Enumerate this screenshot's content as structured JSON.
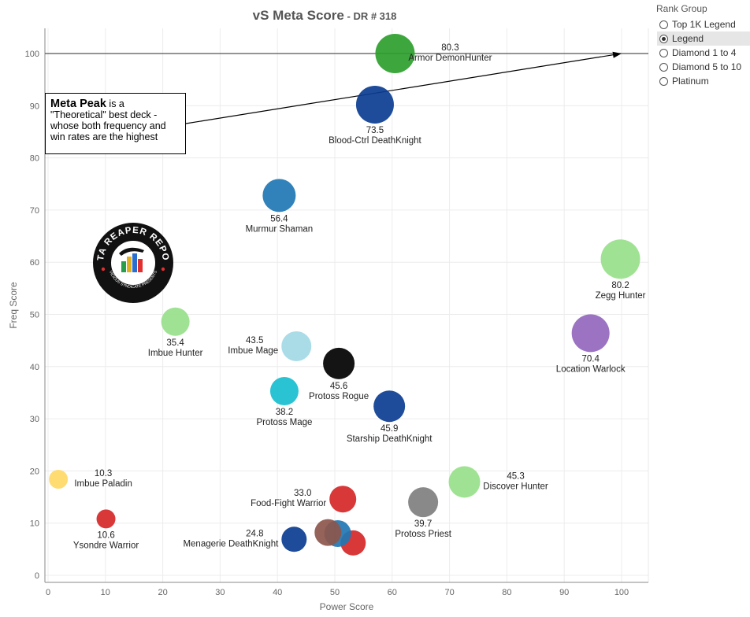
{
  "chart_data": {
    "type": "scatter",
    "title": "vS Meta Score",
    "subtitle": "DR # 318",
    "xlabel": "Power Score",
    "ylabel": "Freq Score",
    "xlim": [
      0,
      100
    ],
    "ylim": [
      0,
      100
    ],
    "x_ticks": [
      "0",
      "10",
      "20",
      "30",
      "40",
      "50",
      "60",
      "70",
      "80",
      "90",
      "100"
    ],
    "y_ticks": [
      "0",
      "10",
      "20",
      "30",
      "40",
      "50",
      "60",
      "70",
      "80",
      "90",
      "100"
    ],
    "grid": true,
    "reference_line": {
      "y": 100
    },
    "points": [
      {
        "name": "Armor DemonHunter",
        "score": "80.3",
        "x": 60.5,
        "y": 100,
        "color": "#2ca02c",
        "size": 25,
        "label_pos": "right"
      },
      {
        "name": "Blood-Ctrl DeathKnight",
        "score": "73.5",
        "x": 57,
        "y": 90.2,
        "color": "#0b3d91",
        "size": 24,
        "label_pos": "below"
      },
      {
        "name": "Murmur Shaman",
        "score": "56.4",
        "x": 40.3,
        "y": 72.8,
        "color": "#1f77b4",
        "size": 21,
        "label_pos": "below"
      },
      {
        "name": "Zegg Hunter",
        "score": "80.2",
        "x": 99.8,
        "y": 60.6,
        "color": "#98df8a",
        "size": 25,
        "label_pos": "below"
      },
      {
        "name": "Imbue Hunter",
        "score": "35.4",
        "x": 22.2,
        "y": 48.6,
        "color": "#98df8a",
        "size": 18,
        "label_pos": "below"
      },
      {
        "name": "Location Warlock",
        "score": "70.4",
        "x": 94.6,
        "y": 46.4,
        "color": "#9467bd",
        "size": 24,
        "label_pos": "below"
      },
      {
        "name": "Imbue Mage",
        "score": "43.5",
        "x": 43.3,
        "y": 43.9,
        "color": "#a3d9e6",
        "size": 19,
        "label_pos": "left"
      },
      {
        "name": "Protoss Rogue",
        "score": "45.6",
        "x": 50.7,
        "y": 40.6,
        "color": "#000000",
        "size": 20,
        "label_pos": "below"
      },
      {
        "name": "Protoss Mage",
        "score": "38.2",
        "x": 41.2,
        "y": 35.3,
        "color": "#17becf",
        "size": 18,
        "label_pos": "below"
      },
      {
        "name": "Starship DeathKnight",
        "score": "45.9",
        "x": 59.5,
        "y": 32.4,
        "color": "#0b3d91",
        "size": 20,
        "label_pos": "below"
      },
      {
        "name": "Imbue Paladin",
        "score": "10.3",
        "x": 1.8,
        "y": 18.4,
        "color": "#ffd966",
        "size": 12,
        "label_pos": "right"
      },
      {
        "name": "Discover Hunter",
        "score": "45.3",
        "x": 72.6,
        "y": 17.9,
        "color": "#98df8a",
        "size": 20,
        "label_pos": "right"
      },
      {
        "name": "Food-Fight Warrior",
        "score": "33.0",
        "x": 51.4,
        "y": 14.6,
        "color": "#d62728",
        "size": 17,
        "label_pos": "left"
      },
      {
        "name": "Protoss Priest",
        "score": "39.7",
        "x": 65.4,
        "y": 14.0,
        "color": "#7f7f7f",
        "size": 19,
        "label_pos": "below"
      },
      {
        "name": "Ysondre Warrior",
        "score": "10.6",
        "x": 10.1,
        "y": 10.8,
        "color": "#d62728",
        "size": 12,
        "label_pos": "below"
      },
      {
        "name": "Menagerie DeathKnight",
        "score": "24.8",
        "x": 42.9,
        "y": 6.9,
        "color": "#0b3d91",
        "size": 16,
        "label_pos": "left"
      },
      {
        "name": "",
        "score": "",
        "x": 53.2,
        "y": 6.2,
        "color": "#d62728",
        "size": 16,
        "label_pos": "none"
      },
      {
        "name": "",
        "score": "",
        "x": 50.5,
        "y": 8.0,
        "color": "#1f77b4",
        "size": 17,
        "label_pos": "none"
      },
      {
        "name": "",
        "score": "",
        "x": 48.8,
        "y": 8.2,
        "color": "#8c564b",
        "size": 17,
        "label_pos": "none"
      }
    ],
    "annotation": {
      "bold": "Meta Peak",
      "text": " is a \"Theoretical\" best deck - whose both frequency and win rates are the highest",
      "arrow_to": {
        "x": 100,
        "y": 100
      }
    }
  },
  "legend": {
    "title": "Rank Group",
    "options": [
      {
        "label": "Top 1K Legend",
        "selected": false
      },
      {
        "label": "Legend",
        "selected": true
      },
      {
        "label": "Diamond 1 to 4",
        "selected": false
      },
      {
        "label": "Diamond 5 to 10",
        "selected": false
      },
      {
        "label": "Platinum",
        "selected": false
      }
    ]
  },
  "logo": {
    "text_top": "DATA REAPER REPORT",
    "text_bottom": "VICIOUS SYNDICATE PRESENTS"
  }
}
